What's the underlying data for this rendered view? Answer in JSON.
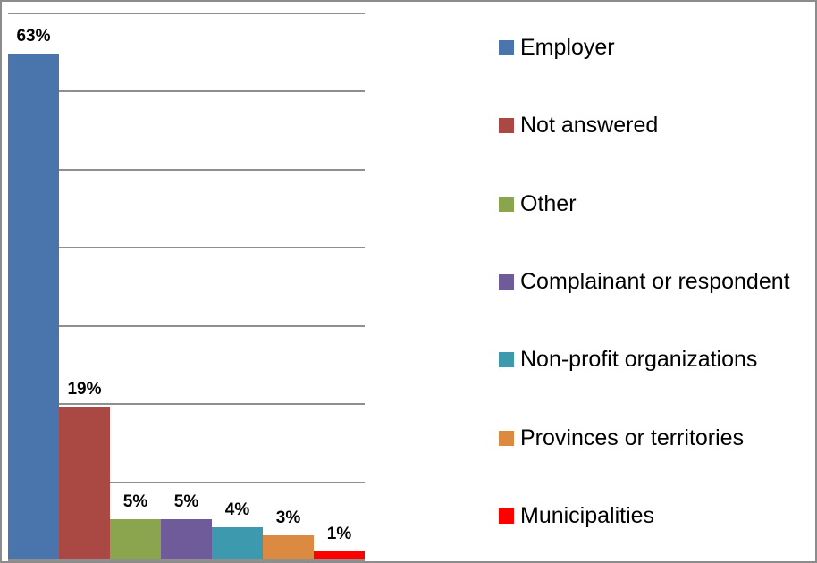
{
  "chart_data": {
    "type": "bar",
    "title": "",
    "xlabel": "",
    "ylabel": "",
    "categories": [
      "Employer",
      "Not answered",
      "Other",
      "Complainant or respondent",
      "Non-profit organizations",
      "Provinces or territories",
      "Municipalities"
    ],
    "values": [
      63,
      19,
      5,
      5,
      4,
      3,
      1
    ],
    "value_labels": [
      "63%",
      "19%",
      "5%",
      "5%",
      "4%",
      "3%",
      "1%"
    ],
    "unit": "%",
    "colors": [
      "#4A74AC",
      "#AA4843",
      "#8BA54E",
      "#6F5B99",
      "#3D99AE",
      "#DC8A42",
      "#FE0000"
    ],
    "ylim": [
      0,
      70
    ],
    "gridline_step": 10,
    "grid": true,
    "x_tick_labels_shown": false,
    "y_tick_labels_shown": false,
    "legend_position": "right"
  },
  "frame": {
    "border_color": "#8C8C8C",
    "gridline_color": "#8F8F8F",
    "background_color": "#FFFFFF",
    "label_color": "#000000"
  }
}
